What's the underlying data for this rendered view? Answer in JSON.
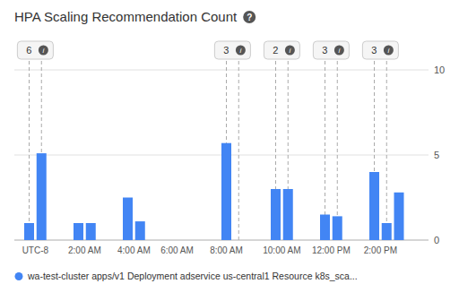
{
  "chart_data": {
    "type": "bar",
    "title": "HPA Scaling Recommendation Count",
    "help_icon": "?",
    "x": [
      0.0,
      0.5,
      2.0,
      2.5,
      4.0,
      4.5,
      8.0,
      10.0,
      10.5,
      12.0,
      12.5,
      14.0,
      14.5,
      15.0
    ],
    "series": [
      {
        "name": "wa-test-cluster apps/v1 Deployment adservice us-central1 Resource k8s_sca...",
        "color": "#4285f4",
        "values": [
          1.0,
          5.1,
          1.0,
          1.0,
          2.5,
          1.1,
          5.7,
          3.0,
          3.0,
          1.5,
          1.4,
          4.0,
          1.0,
          2.8
        ]
      }
    ],
    "xlim": [
      -0.6,
      16.2
    ],
    "xticks": [
      {
        "value": 0.25,
        "label": "UTC-8"
      },
      {
        "value": 2.25,
        "label": "2:00 AM"
      },
      {
        "value": 4.25,
        "label": "4:00 AM"
      },
      {
        "value": 6.0,
        "label": "6:00 AM"
      },
      {
        "value": 8.0,
        "label": "8:00 AM"
      },
      {
        "value": 10.25,
        "label": "10:00 AM"
      },
      {
        "value": 12.25,
        "label": "12:00 PM"
      },
      {
        "value": 14.25,
        "label": "2:00 PM"
      }
    ],
    "ylim": [
      0,
      10
    ],
    "yticks": [
      0,
      5,
      10
    ],
    "grid": true,
    "legend": "bottom left",
    "annotations": [
      {
        "x": 0.25,
        "label": "6",
        "icon": "i",
        "lines": [
          0.0,
          0.5
        ]
      },
      {
        "x": 8.25,
        "label": "3",
        "icon": "i",
        "lines": [
          8.0,
          8.5
        ]
      },
      {
        "x": 10.25,
        "label": "2",
        "icon": "i",
        "lines": [
          10.0,
          10.5
        ]
      },
      {
        "x": 12.25,
        "label": "3",
        "icon": "i",
        "lines": [
          12.0,
          12.5
        ]
      },
      {
        "x": 14.25,
        "label": "3",
        "icon": "i",
        "lines": [
          14.0,
          14.5
        ]
      }
    ]
  }
}
